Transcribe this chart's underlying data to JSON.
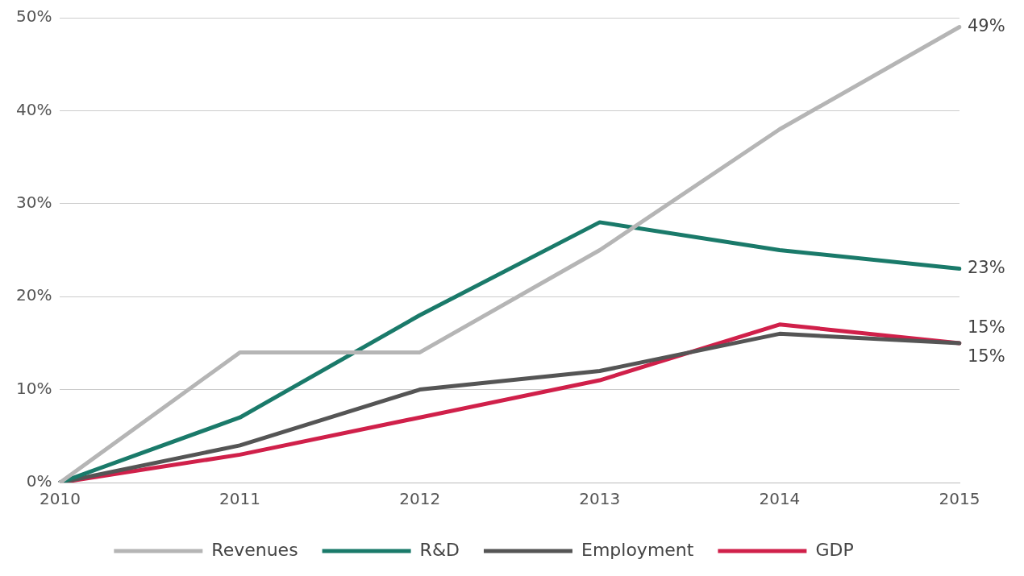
{
  "chart_data": {
    "type": "line",
    "categories": [
      "2010",
      "2011",
      "2012",
      "2013",
      "2014",
      "2015"
    ],
    "series": [
      {
        "name": "Revenues",
        "color": "#b5b5b5",
        "values": [
          0,
          14,
          14,
          25,
          38,
          49
        ],
        "value_labels": [
          null,
          null,
          null,
          null,
          null,
          "49%"
        ]
      },
      {
        "name": "R&D",
        "color": "#1a7a6a",
        "values": [
          0,
          7,
          18,
          28,
          25,
          23
        ],
        "value_labels": [
          null,
          null,
          null,
          null,
          null,
          "23%"
        ]
      },
      {
        "name": "Employment",
        "color": "#555555",
        "values": [
          0,
          4,
          10,
          12,
          16,
          15
        ],
        "value_labels": [
          null,
          null,
          null,
          null,
          null,
          "15%"
        ]
      },
      {
        "name": "GDP",
        "color": "#d0204a",
        "values": [
          0,
          3,
          7,
          11,
          17,
          15
        ],
        "value_labels": [
          null,
          null,
          null,
          null,
          null,
          "15%"
        ]
      }
    ],
    "ylim": [
      0,
      50
    ],
    "yticks": [
      {
        "value": 0,
        "label": "0%"
      },
      {
        "value": 10,
        "label": "10%"
      },
      {
        "value": 20,
        "label": "20%"
      },
      {
        "value": 30,
        "label": "30%"
      },
      {
        "value": 40,
        "label": "40%"
      },
      {
        "value": 50,
        "label": "50%"
      }
    ],
    "grid": "y",
    "legend": "bottom",
    "marker": "none",
    "line_style": "solid"
  }
}
